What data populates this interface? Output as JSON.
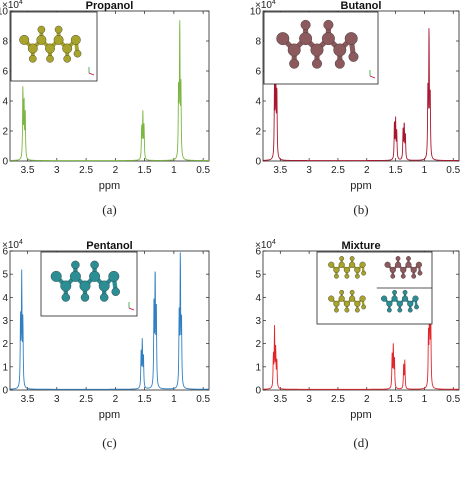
{
  "chart_data": [
    {
      "type": "line",
      "title": "Propanol",
      "caption": "(a)",
      "xlabel": "ppm",
      "x_reversed": true,
      "xlim": [
        3.8,
        0.4
      ],
      "ylim": [
        0,
        100000
      ],
      "y_multiplier": "×10^4",
      "y_multiplier_base": "×10",
      "y_multiplier_exp": "4",
      "yticks": [
        0,
        20000,
        40000,
        60000,
        80000,
        100000
      ],
      "ytick_labels": [
        "0",
        "2",
        "4",
        "6",
        "8",
        "10"
      ],
      "xticks": [
        3.5,
        3,
        2.5,
        2,
        1.5,
        1,
        0.5
      ],
      "xtick_labels": [
        "3.5",
        "3",
        "2.5",
        "2",
        "1.5",
        "1",
        "0.5"
      ],
      "color": "#7ab640",
      "inset_molecule": "propanol-molecule",
      "inset_color": "#a8a32a",
      "series": [
        {
          "peaks": [
            {
              "x": 3.58,
              "y": 47000
            },
            {
              "x": 3.56,
              "y": 38000
            },
            {
              "x": 3.54,
              "y": 30000
            },
            {
              "x": 1.55,
              "y": 22000
            },
            {
              "x": 1.53,
              "y": 30000
            },
            {
              "x": 1.51,
              "y": 22000
            },
            {
              "x": 0.92,
              "y": 47000
            },
            {
              "x": 0.9,
              "y": 90000
            },
            {
              "x": 0.88,
              "y": 46000
            }
          ]
        }
      ]
    },
    {
      "type": "line",
      "title": "Butanol",
      "caption": "(b)",
      "xlabel": "ppm",
      "x_reversed": true,
      "xlim": [
        3.8,
        0.4
      ],
      "ylim": [
        0,
        100000
      ],
      "y_multiplier": "×10^4",
      "y_multiplier_base": "×10",
      "y_multiplier_exp": "4",
      "yticks": [
        0,
        20000,
        40000,
        60000,
        80000,
        100000
      ],
      "ytick_labels": [
        "0",
        "2",
        "4",
        "6",
        "8",
        "10"
      ],
      "xticks": [
        3.5,
        3,
        2.5,
        2,
        1.5,
        1,
        0.5
      ],
      "xtick_labels": [
        "3.5",
        "3",
        "2.5",
        "2",
        "1.5",
        "1",
        "0.5"
      ],
      "color": "#a8162f",
      "inset_molecule": "butanol-molecule",
      "inset_color": "#8c5a5d",
      "series": [
        {
          "peaks": [
            {
              "x": 3.6,
              "y": 50000
            },
            {
              "x": 3.58,
              "y": 68000
            },
            {
              "x": 3.56,
              "y": 45000
            },
            {
              "x": 1.52,
              "y": 25000
            },
            {
              "x": 1.5,
              "y": 26000
            },
            {
              "x": 1.48,
              "y": 18000
            },
            {
              "x": 1.37,
              "y": 20000
            },
            {
              "x": 1.35,
              "y": 24000
            },
            {
              "x": 1.33,
              "y": 16000
            },
            {
              "x": 0.94,
              "y": 44000
            },
            {
              "x": 0.92,
              "y": 85000
            },
            {
              "x": 0.9,
              "y": 42000
            }
          ]
        }
      ]
    },
    {
      "type": "line",
      "title": "Pentanol",
      "caption": "(c)",
      "xlabel": "ppm",
      "x_reversed": true,
      "xlim": [
        3.8,
        0.4
      ],
      "ylim": [
        0,
        60000
      ],
      "y_multiplier": "×10^4",
      "y_multiplier_base": "×10",
      "y_multiplier_exp": "4",
      "yticks": [
        0,
        10000,
        20000,
        30000,
        40000,
        50000,
        60000
      ],
      "ytick_labels": [
        "0",
        "1",
        "2",
        "3",
        "4",
        "5",
        "6"
      ],
      "xticks": [
        3.5,
        3,
        2.5,
        2,
        1.5,
        1,
        0.5
      ],
      "xtick_labels": [
        "3.5",
        "3",
        "2.5",
        "2",
        "1.5",
        "1",
        "0.5"
      ],
      "color": "#2f7fc2",
      "inset_molecule": "pentanol-molecule",
      "inset_color": "#2a8e94",
      "series": [
        {
          "peaks": [
            {
              "x": 3.62,
              "y": 30000
            },
            {
              "x": 3.6,
              "y": 47000
            },
            {
              "x": 3.58,
              "y": 28000
            },
            {
              "x": 1.56,
              "y": 15000
            },
            {
              "x": 1.54,
              "y": 20000
            },
            {
              "x": 1.52,
              "y": 14000
            },
            {
              "x": 1.34,
              "y": 35000
            },
            {
              "x": 1.32,
              "y": 49000
            },
            {
              "x": 1.3,
              "y": 33000
            },
            {
              "x": 0.91,
              "y": 30000
            },
            {
              "x": 0.89,
              "y": 56000
            },
            {
              "x": 0.87,
              "y": 29000
            }
          ]
        }
      ]
    },
    {
      "type": "line",
      "title": "Mixture",
      "caption": "(d)",
      "xlabel": "ppm",
      "x_reversed": true,
      "xlim": [
        3.8,
        0.4
      ],
      "ylim": [
        0,
        60000
      ],
      "y_multiplier": "×10^4",
      "y_multiplier_base": "×10",
      "y_multiplier_exp": "4",
      "yticks": [
        0,
        10000,
        20000,
        30000,
        40000,
        50000,
        60000
      ],
      "ytick_labels": [
        "0",
        "1",
        "2",
        "3",
        "4",
        "5",
        "6"
      ],
      "xticks": [
        3.5,
        3,
        2.5,
        2,
        1.5,
        1,
        0.5
      ],
      "xtick_labels": [
        "3.5",
        "3",
        "2.5",
        "2",
        "1.5",
        "1",
        "0.5"
      ],
      "color": "#e0262a",
      "inset_molecules": [
        "propanol-molecule",
        "butanol-molecule",
        "propanol-molecule",
        "pentanol-molecule"
      ],
      "inset_colors": [
        "#a8a32a",
        "#8c5a5d",
        "#a8a32a",
        "#2a8e94"
      ],
      "series": [
        {
          "peaks": [
            {
              "x": 3.62,
              "y": 14000
            },
            {
              "x": 3.6,
              "y": 25000
            },
            {
              "x": 3.58,
              "y": 16000
            },
            {
              "x": 3.56,
              "y": 12000
            },
            {
              "x": 1.56,
              "y": 14000
            },
            {
              "x": 1.54,
              "y": 18000
            },
            {
              "x": 1.52,
              "y": 13000
            },
            {
              "x": 1.36,
              "y": 10000
            },
            {
              "x": 1.34,
              "y": 12000
            },
            {
              "x": 0.93,
              "y": 22000
            },
            {
              "x": 0.91,
              "y": 50000
            },
            {
              "x": 0.89,
              "y": 30000
            }
          ]
        }
      ]
    }
  ]
}
